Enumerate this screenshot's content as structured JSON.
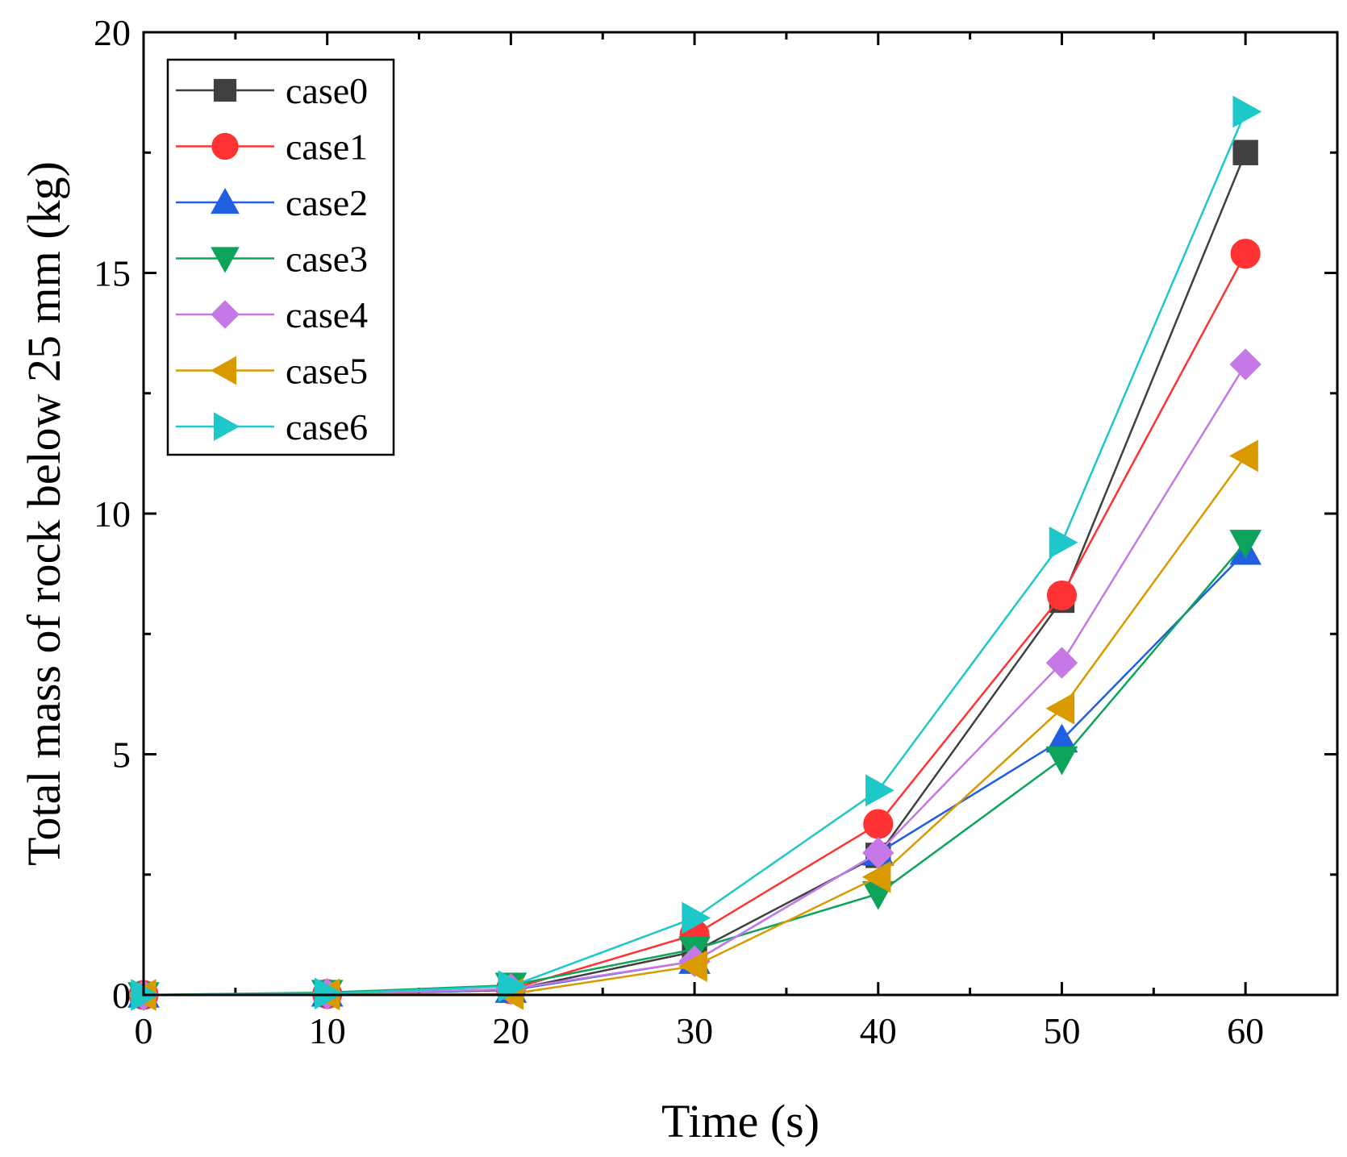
{
  "chart_data": {
    "type": "line",
    "title": "",
    "xlabel": "Time (s)",
    "ylabel": "Total mass of rock below 25 mm (kg)",
    "xlim": [
      0,
      65
    ],
    "ylim": [
      0,
      20
    ],
    "xticks": [
      0,
      10,
      20,
      30,
      40,
      50,
      60
    ],
    "yticks": [
      0,
      5,
      10,
      15,
      20
    ],
    "x": [
      0,
      10,
      20,
      30,
      40,
      50,
      60
    ],
    "legend_position": "top-left",
    "series": [
      {
        "name": "case0",
        "color": "#404040",
        "marker": "square",
        "values": [
          0,
          0.02,
          0.1,
          0.9,
          2.9,
          8.2,
          17.5
        ]
      },
      {
        "name": "case1",
        "color": "#ff3333",
        "marker": "circle",
        "values": [
          0,
          0.02,
          0.12,
          1.25,
          3.55,
          8.3,
          15.4
        ]
      },
      {
        "name": "case2",
        "color": "#1f5fe0",
        "marker": "triangle-up",
        "values": [
          0,
          0.02,
          0.1,
          0.7,
          2.95,
          5.3,
          9.2
        ]
      },
      {
        "name": "case3",
        "color": "#0ea35a",
        "marker": "triangle-down",
        "values": [
          0,
          0.05,
          0.2,
          0.95,
          2.1,
          4.9,
          9.4
        ]
      },
      {
        "name": "case4",
        "color": "#c678e6",
        "marker": "diamond",
        "values": [
          0,
          0.02,
          0.12,
          0.7,
          2.95,
          6.9,
          13.1
        ]
      },
      {
        "name": "case5",
        "color": "#d99a00",
        "marker": "triangle-left",
        "values": [
          0,
          0.01,
          0.02,
          0.6,
          2.45,
          5.95,
          11.2
        ]
      },
      {
        "name": "case6",
        "color": "#1ec8c8",
        "marker": "triangle-right",
        "values": [
          0,
          0.03,
          0.18,
          1.6,
          4.25,
          9.4,
          18.35
        ]
      }
    ]
  }
}
